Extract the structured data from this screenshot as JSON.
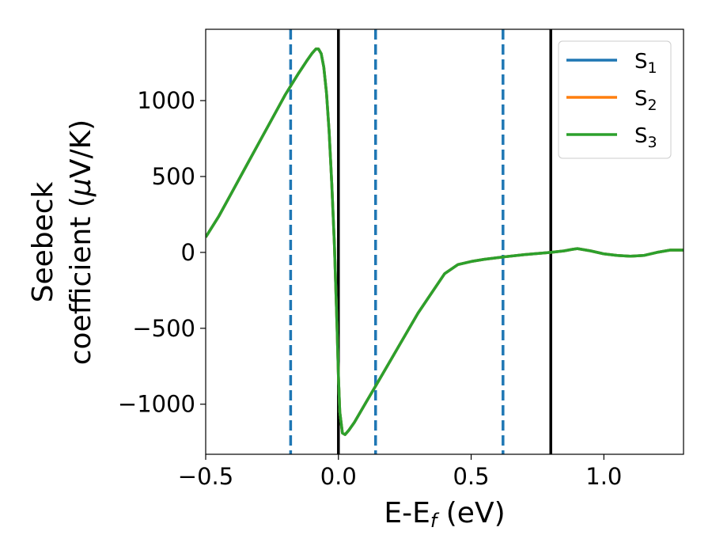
{
  "chart_data": {
    "type": "line",
    "title": "",
    "xlabel": {
      "main": "E-E",
      "sub": "f",
      "tail": " (eV)"
    },
    "ylabel": {
      "line1": "Seebeck",
      "line2": "coefficient  (",
      "mu": "μ",
      "line2_tail": "V/K)"
    },
    "xlim": [
      -0.5,
      1.3
    ],
    "ylim": [
      -1330,
      1470
    ],
    "xticks": [
      -0.5,
      0.0,
      0.5,
      1.0
    ],
    "xtick_labels": [
      "−0.5",
      "0.0",
      "0.5",
      "1.0"
    ],
    "yticks": [
      -1000,
      -500,
      0,
      500,
      1000
    ],
    "ytick_labels": [
      "−1000",
      "−500",
      "0",
      "500",
      "1000"
    ],
    "grid": false,
    "legend_position": "top-right",
    "x": [
      -0.5,
      -0.45,
      -0.4,
      -0.35,
      -0.3,
      -0.25,
      -0.2,
      -0.15,
      -0.12,
      -0.1,
      -0.085,
      -0.075,
      -0.065,
      -0.055,
      -0.045,
      -0.035,
      -0.025,
      -0.015,
      -0.005,
      0.0,
      0.005,
      0.015,
      0.025,
      0.04,
      0.06,
      0.08,
      0.1,
      0.14,
      0.2,
      0.3,
      0.4,
      0.45,
      0.5,
      0.55,
      0.62,
      0.7,
      0.8,
      0.85,
      0.88,
      0.9,
      0.95,
      1.0,
      1.05,
      1.1,
      1.15,
      1.2,
      1.25,
      1.3
    ],
    "series": [
      {
        "name": "S",
        "sub": "1",
        "color": "#1f77b4",
        "y": [
          100,
          240,
          400,
          560,
          720,
          880,
          1040,
          1180,
          1260,
          1310,
          1340,
          1340,
          1310,
          1220,
          1050,
          800,
          450,
          50,
          -500,
          -820,
          -1050,
          -1190,
          -1200,
          -1170,
          -1120,
          -1060,
          -1000,
          -880,
          -700,
          -400,
          -140,
          -80,
          -60,
          -45,
          -30,
          -15,
          0,
          10,
          20,
          25,
          10,
          -10,
          -20,
          -25,
          -20,
          0,
          15,
          15
        ]
      },
      {
        "name": "S",
        "sub": "2",
        "color": "#ff7f0e",
        "y": [
          100,
          240,
          400,
          560,
          720,
          880,
          1040,
          1180,
          1260,
          1310,
          1340,
          1340,
          1310,
          1220,
          1050,
          800,
          450,
          50,
          -500,
          -820,
          -1050,
          -1190,
          -1200,
          -1170,
          -1120,
          -1060,
          -1000,
          -880,
          -700,
          -400,
          -140,
          -80,
          -60,
          -45,
          -30,
          -15,
          0,
          10,
          20,
          25,
          10,
          -10,
          -20,
          -25,
          -20,
          0,
          15,
          15
        ]
      },
      {
        "name": "S",
        "sub": "3",
        "color": "#2ca02c",
        "y": [
          100,
          240,
          400,
          560,
          720,
          880,
          1040,
          1180,
          1260,
          1310,
          1340,
          1340,
          1310,
          1220,
          1050,
          800,
          450,
          50,
          -500,
          -820,
          -1050,
          -1190,
          -1200,
          -1170,
          -1120,
          -1060,
          -1000,
          -880,
          -700,
          -400,
          -140,
          -80,
          -60,
          -45,
          -30,
          -15,
          0,
          10,
          20,
          25,
          10,
          -10,
          -20,
          -25,
          -20,
          0,
          15,
          15
        ]
      }
    ],
    "vlines": [
      {
        "x": -0.18,
        "style": "dashed",
        "color": "#1f77b4"
      },
      {
        "x": 0.0,
        "style": "solid",
        "color": "#000000"
      },
      {
        "x": 0.14,
        "style": "dashed",
        "color": "#1f77b4"
      },
      {
        "x": 0.62,
        "style": "dashed",
        "color": "#1f77b4"
      },
      {
        "x": 0.8,
        "style": "solid",
        "color": "#000000"
      }
    ]
  }
}
